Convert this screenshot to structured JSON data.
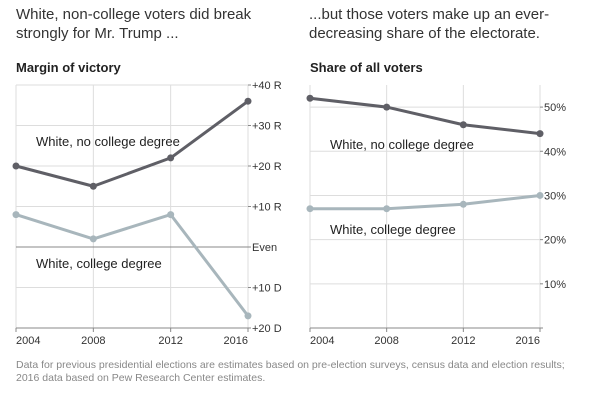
{
  "headlines": {
    "left": "White, non-college voters did break strongly for Mr. Trump ...",
    "right": "...but those voters make up an ever-decreasing share of the electorate."
  },
  "note": "Data for previous presidential elections are estimates based on pre-election surveys, census data and election results; 2016 data based on Pew Research Center estimates.",
  "colors": {
    "dark": "#5f5f66",
    "light": "#a8b6bc",
    "grid": "#dddddd",
    "axis": "#888888"
  },
  "chart_data": [
    {
      "type": "line",
      "title": "Margin of victory",
      "x": [
        2004,
        2008,
        2012,
        2016
      ],
      "ylim": [
        -20,
        40
      ],
      "yticks": [
        {
          "value": 40,
          "label": "+40 R"
        },
        {
          "value": 30,
          "label": "+30 R"
        },
        {
          "value": 20,
          "label": "+20 R"
        },
        {
          "value": 10,
          "label": "+10 R"
        },
        {
          "value": 0,
          "label": "Even"
        },
        {
          "value": -10,
          "label": "+10 D"
        },
        {
          "value": -20,
          "label": "+20 D"
        }
      ],
      "y_axis_side": "right",
      "grid": true,
      "series": [
        {
          "name": "White, no college degree",
          "values": [
            20,
            15,
            22,
            36
          ],
          "color": "dark"
        },
        {
          "name": "White, college degree",
          "values": [
            8,
            2,
            8,
            -17
          ],
          "color": "light"
        }
      ]
    },
    {
      "type": "line",
      "title": "Share of all voters",
      "x": [
        2004,
        2008,
        2012,
        2016
      ],
      "ylim": [
        0,
        55
      ],
      "yticks": [
        {
          "value": 50,
          "label": "50%"
        },
        {
          "value": 40,
          "label": "40%"
        },
        {
          "value": 30,
          "label": "30%"
        },
        {
          "value": 20,
          "label": "20%"
        },
        {
          "value": 10,
          "label": "10%"
        }
      ],
      "y_axis_side": "right",
      "grid": true,
      "series": [
        {
          "name": "White, no college degree",
          "values": [
            52,
            50,
            46,
            44
          ],
          "color": "dark"
        },
        {
          "name": "White, college degree",
          "values": [
            27,
            27,
            28,
            30
          ],
          "color": "light"
        }
      ]
    }
  ]
}
